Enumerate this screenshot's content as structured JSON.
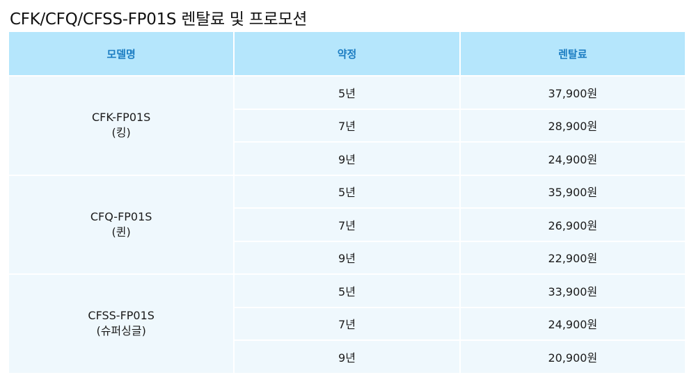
{
  "title": "CFK/CFQ/CFSS-FP01S 렌탈료 및 프로모션",
  "headers": [
    "모델명",
    "약정",
    "렌탈료"
  ],
  "groups": [
    {
      "model": "CFK-FP01S",
      "sub": "(킹)",
      "rows": [
        {
          "term": "5년",
          "price": "37,900원"
        },
        {
          "term": "7년",
          "price": "28,900원"
        },
        {
          "term": "9년",
          "price": "24,900원"
        }
      ]
    },
    {
      "model": "CFQ-FP01S",
      "sub": "(퀸)",
      "rows": [
        {
          "term": "5년",
          "price": "35,900원"
        },
        {
          "term": "7년",
          "price": "26,900원"
        },
        {
          "term": "9년",
          "price": "22,900원"
        }
      ]
    },
    {
      "model": "CFSS-FP01S",
      "sub": "(슈퍼싱글)",
      "rows": [
        {
          "term": "5년",
          "price": "33,900원"
        },
        {
          "term": "7년",
          "price": "24,900원"
        },
        {
          "term": "9년",
          "price": "20,900원"
        }
      ]
    }
  ]
}
